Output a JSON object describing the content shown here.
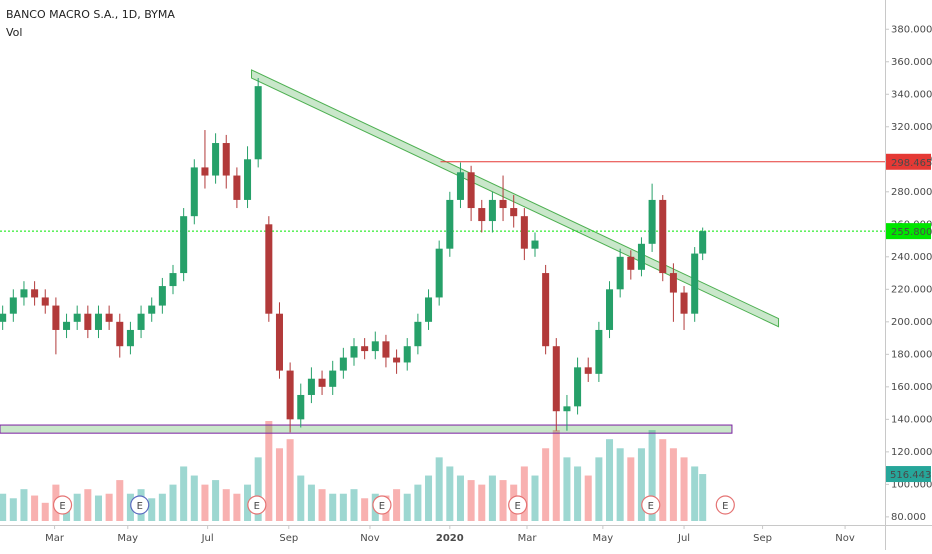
{
  "chart_data": {
    "type": "candlestick",
    "title": "BANCO MACRO S.A., 1D, BYMA",
    "volume_title": "Vol",
    "x": [
      2,
      10,
      18,
      26,
      34,
      42,
      50,
      58,
      66,
      74,
      82,
      90,
      98,
      106,
      114,
      122,
      130,
      138,
      146,
      154,
      162,
      170,
      178,
      186,
      194,
      202,
      210,
      218,
      226,
      234,
      242,
      250,
      258,
      266,
      274,
      282,
      290,
      298,
      306,
      314,
      322,
      330,
      338,
      346,
      354,
      362,
      370,
      378,
      386,
      394,
      402,
      410,
      418,
      426,
      434,
      442,
      450,
      458,
      466,
      474,
      482,
      490,
      498,
      506,
      514,
      522,
      528
    ],
    "open": [
      200,
      205,
      215,
      220,
      215,
      210,
      195,
      200,
      205,
      195,
      205,
      200,
      185,
      195,
      205,
      210,
      222,
      230,
      265,
      295,
      290,
      310,
      290,
      275,
      300,
      260,
      205,
      170,
      140,
      155,
      165,
      160,
      170,
      178,
      185,
      182,
      188,
      178,
      175,
      185,
      200,
      215,
      245,
      275,
      292,
      270,
      262,
      275,
      270,
      265,
      245,
      230,
      185,
      145,
      148,
      172,
      168,
      195,
      220,
      240,
      232,
      248,
      275,
      230,
      218,
      205,
      242
    ],
    "high": [
      210,
      220,
      225,
      225,
      220,
      215,
      205,
      210,
      210,
      210,
      210,
      205,
      200,
      210,
      215,
      227,
      235,
      270,
      300,
      318,
      316,
      315,
      295,
      308,
      350,
      265,
      212,
      175,
      162,
      172,
      170,
      176,
      184,
      190,
      190,
      194,
      192,
      183,
      190,
      205,
      220,
      250,
      280,
      298,
      296,
      275,
      280,
      290,
      278,
      270,
      255,
      235,
      190,
      155,
      178,
      178,
      200,
      225,
      245,
      244,
      252,
      285,
      278,
      236,
      222,
      246,
      258
    ],
    "low": [
      195,
      200,
      210,
      210,
      205,
      180,
      190,
      195,
      190,
      190,
      195,
      178,
      180,
      190,
      200,
      205,
      217,
      225,
      260,
      282,
      285,
      282,
      270,
      270,
      295,
      200,
      165,
      132,
      135,
      150,
      155,
      155,
      165,
      173,
      177,
      177,
      172,
      168,
      170,
      180,
      195,
      210,
      240,
      270,
      262,
      255,
      255,
      262,
      258,
      238,
      240,
      180,
      133,
      133,
      143,
      163,
      163,
      190,
      215,
      226,
      228,
      243,
      225,
      200,
      195,
      200,
      238
    ],
    "close": [
      205,
      215,
      220,
      215,
      210,
      195,
      200,
      205,
      195,
      205,
      200,
      185,
      195,
      205,
      210,
      222,
      230,
      265,
      295,
      290,
      310,
      290,
      275,
      300,
      345,
      205,
      170,
      140,
      155,
      165,
      160,
      170,
      178,
      185,
      182,
      188,
      178,
      175,
      185,
      200,
      215,
      245,
      275,
      292,
      270,
      262,
      275,
      270,
      265,
      245,
      250,
      185,
      145,
      148,
      172,
      168,
      195,
      220,
      240,
      232,
      248,
      275,
      230,
      218,
      205,
      242,
      255.8
    ],
    "up_color": "#26a069",
    "down_color": "#b23a3a",
    "volume": {
      "values": [
        300,
        250,
        350,
        280,
        200,
        400,
        250,
        300,
        350,
        280,
        300,
        450,
        300,
        350,
        250,
        300,
        400,
        600,
        500,
        400,
        450,
        350,
        300,
        400,
        700,
        1100,
        800,
        900,
        500,
        400,
        350,
        300,
        300,
        350,
        250,
        300,
        280,
        350,
        300,
        400,
        500,
        700,
        600,
        500,
        450,
        400,
        500,
        450,
        400,
        600,
        500,
        800,
        1000,
        700,
        600,
        500,
        700,
        900,
        800,
        700,
        800,
        1000,
        900,
        800,
        700,
        600,
        516.443
      ],
      "last_label": "516.443K",
      "up_color": "rgba(38,166,154,0.45)",
      "down_color": "rgba(239,83,80,0.45)",
      "tag_color": "#26a69a"
    },
    "xlim": [
      0,
      665
    ],
    "xticks": [
      {
        "value": 41,
        "label": "Mar"
      },
      {
        "value": 96,
        "label": "May"
      },
      {
        "value": 156,
        "label": "Jul"
      },
      {
        "value": 217,
        "label": "Sep"
      },
      {
        "value": 278,
        "label": "Nov"
      },
      {
        "value": 338,
        "label": "2020"
      },
      {
        "value": 396,
        "label": "Mar"
      },
      {
        "value": 453,
        "label": "May"
      },
      {
        "value": 514,
        "label": "Jul"
      },
      {
        "value": 573,
        "label": "Sep"
      },
      {
        "value": 635,
        "label": "Nov"
      }
    ],
    "ylim": [
      75,
      398
    ],
    "yticks": [
      {
        "value": 80,
        "label": "80.000"
      },
      {
        "value": 100,
        "label": "100.000"
      },
      {
        "value": 120,
        "label": "120.000"
      },
      {
        "value": 140,
        "label": "140.000"
      },
      {
        "value": 160,
        "label": "160.000"
      },
      {
        "value": 180,
        "label": "180.000"
      },
      {
        "value": 200,
        "label": "200.000"
      },
      {
        "value": 220,
        "label": "220.000"
      },
      {
        "value": 240,
        "label": "240.000"
      },
      {
        "value": 260,
        "label": "260.000"
      },
      {
        "value": 280,
        "label": "280.000"
      },
      {
        "value": 300,
        "label": "300.000"
      },
      {
        "value": 320,
        "label": "320.000"
      },
      {
        "value": 340,
        "label": "340.000"
      },
      {
        "value": 360,
        "label": "360.000"
      },
      {
        "value": 380,
        "label": "380.000"
      }
    ],
    "grid": false,
    "levels": [
      {
        "value": 298.465,
        "label": "298.465",
        "color": "#e53935",
        "from": 331,
        "dashed": false
      },
      {
        "value": 255.8,
        "label": "255.800",
        "color": "#00e600",
        "from": 0,
        "dashed": true
      }
    ],
    "trend_channel": {
      "points": [
        [
          189,
          355
        ],
        [
          585,
          202
        ]
      ],
      "width": 5,
      "color": "#4caf50"
    },
    "support_zone": {
      "x": [
        0,
        550
      ],
      "y": [
        131.5,
        136.5
      ],
      "color": "#4caf50",
      "border": "#7b1fa2"
    },
    "earnings": {
      "label": "E",
      "x": [
        47,
        105,
        193,
        287,
        389,
        489,
        545
      ],
      "color": "#e57373",
      "highlight": 1,
      "highlight_color": "#5c6bc0"
    }
  }
}
